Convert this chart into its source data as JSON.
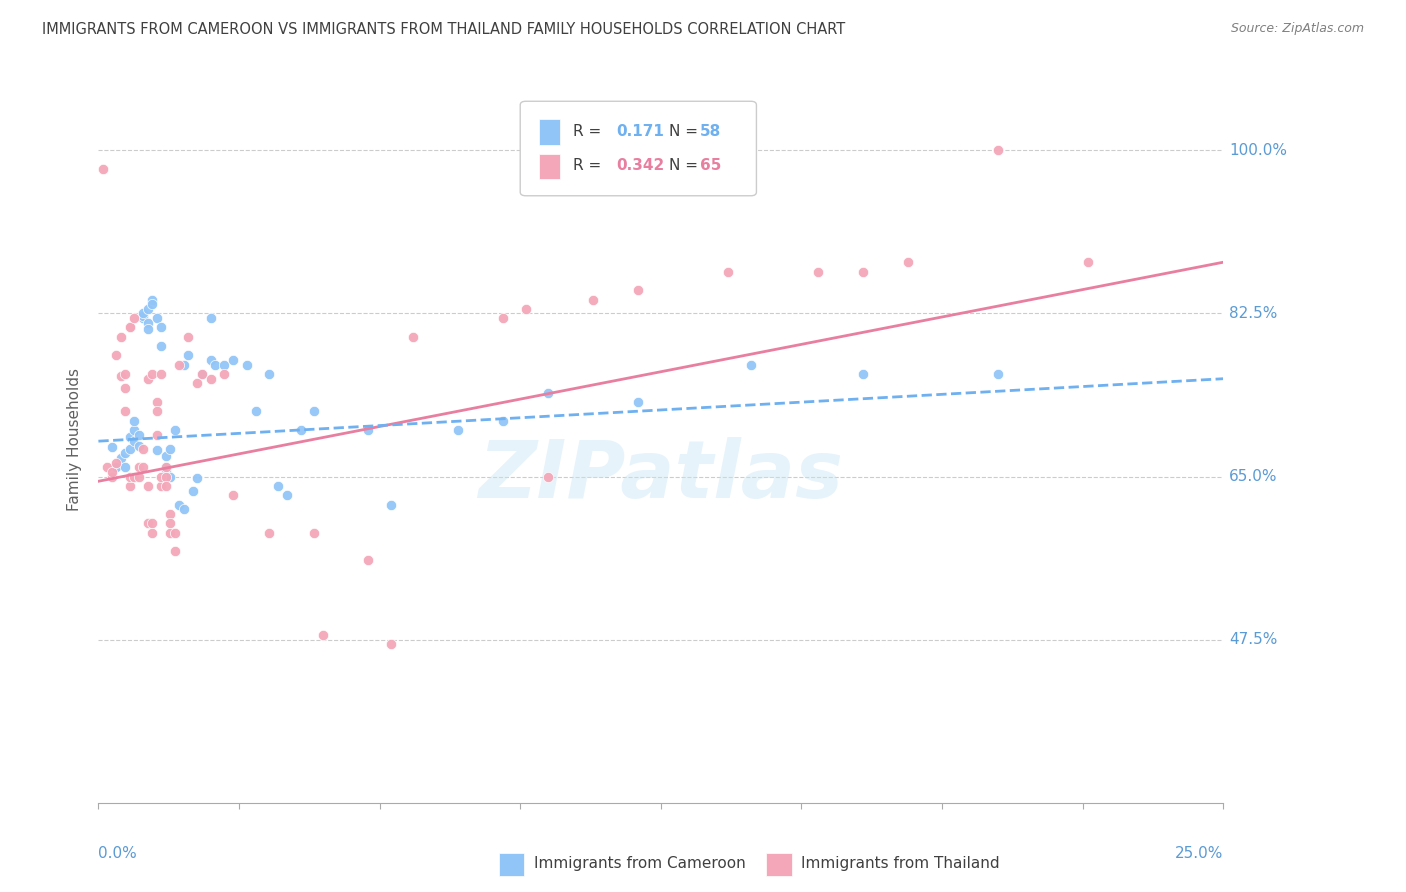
{
  "title": "IMMIGRANTS FROM CAMEROON VS IMMIGRANTS FROM THAILAND FAMILY HOUSEHOLDS CORRELATION CHART",
  "source": "Source: ZipAtlas.com",
  "ylabel": "Family Households",
  "legend_blue": {
    "R": "0.171",
    "N": "58"
  },
  "legend_pink": {
    "R": "0.342",
    "N": "65"
  },
  "watermark": "ZIPatlas",
  "blue_color": "#92C5F7",
  "pink_color": "#F4A7B9",
  "line_blue_color": "#6EB0F0",
  "line_pink_color": "#E87FA0",
  "axis_label_color": "#5B9BD5",
  "title_color": "#404040",
  "blue_scatter": [
    [
      0.003,
      0.682
    ],
    [
      0.004,
      0.66
    ],
    [
      0.005,
      0.67
    ],
    [
      0.006,
      0.675
    ],
    [
      0.006,
      0.66
    ],
    [
      0.007,
      0.692
    ],
    [
      0.007,
      0.68
    ],
    [
      0.008,
      0.7
    ],
    [
      0.008,
      0.688
    ],
    [
      0.008,
      0.71
    ],
    [
      0.009,
      0.695
    ],
    [
      0.009,
      0.683
    ],
    [
      0.01,
      0.82
    ],
    [
      0.01,
      0.822
    ],
    [
      0.01,
      0.825
    ],
    [
      0.011,
      0.83
    ],
    [
      0.011,
      0.815
    ],
    [
      0.011,
      0.808
    ],
    [
      0.012,
      0.84
    ],
    [
      0.012,
      0.835
    ],
    [
      0.013,
      0.82
    ],
    [
      0.013,
      0.678
    ],
    [
      0.014,
      0.81
    ],
    [
      0.014,
      0.79
    ],
    [
      0.015,
      0.672
    ],
    [
      0.015,
      0.66
    ],
    [
      0.015,
      0.655
    ],
    [
      0.016,
      0.65
    ],
    [
      0.016,
      0.68
    ],
    [
      0.017,
      0.7
    ],
    [
      0.018,
      0.62
    ],
    [
      0.019,
      0.615
    ],
    [
      0.019,
      0.77
    ],
    [
      0.02,
      0.78
    ],
    [
      0.021,
      0.635
    ],
    [
      0.022,
      0.648
    ],
    [
      0.023,
      0.76
    ],
    [
      0.025,
      0.82
    ],
    [
      0.025,
      0.775
    ],
    [
      0.026,
      0.77
    ],
    [
      0.028,
      0.77
    ],
    [
      0.03,
      0.775
    ],
    [
      0.033,
      0.77
    ],
    [
      0.035,
      0.72
    ],
    [
      0.038,
      0.76
    ],
    [
      0.04,
      0.64
    ],
    [
      0.042,
      0.63
    ],
    [
      0.045,
      0.7
    ],
    [
      0.048,
      0.72
    ],
    [
      0.06,
      0.7
    ],
    [
      0.065,
      0.62
    ],
    [
      0.08,
      0.7
    ],
    [
      0.09,
      0.71
    ],
    [
      0.1,
      0.74
    ],
    [
      0.12,
      0.73
    ],
    [
      0.145,
      0.77
    ],
    [
      0.17,
      0.76
    ],
    [
      0.2,
      0.76
    ]
  ],
  "pink_scatter": [
    [
      0.001,
      0.98
    ],
    [
      0.002,
      0.66
    ],
    [
      0.003,
      0.65
    ],
    [
      0.003,
      0.655
    ],
    [
      0.004,
      0.665
    ],
    [
      0.004,
      0.78
    ],
    [
      0.005,
      0.758
    ],
    [
      0.005,
      0.8
    ],
    [
      0.006,
      0.72
    ],
    [
      0.006,
      0.745
    ],
    [
      0.006,
      0.76
    ],
    [
      0.007,
      0.81
    ],
    [
      0.007,
      0.81
    ],
    [
      0.007,
      0.64
    ],
    [
      0.007,
      0.65
    ],
    [
      0.008,
      0.65
    ],
    [
      0.008,
      0.82
    ],
    [
      0.009,
      0.66
    ],
    [
      0.009,
      0.65
    ],
    [
      0.01,
      0.68
    ],
    [
      0.01,
      0.66
    ],
    [
      0.011,
      0.755
    ],
    [
      0.011,
      0.64
    ],
    [
      0.011,
      0.6
    ],
    [
      0.012,
      0.59
    ],
    [
      0.012,
      0.6
    ],
    [
      0.012,
      0.76
    ],
    [
      0.013,
      0.73
    ],
    [
      0.013,
      0.72
    ],
    [
      0.013,
      0.695
    ],
    [
      0.014,
      0.76
    ],
    [
      0.014,
      0.64
    ],
    [
      0.014,
      0.65
    ],
    [
      0.015,
      0.66
    ],
    [
      0.015,
      0.65
    ],
    [
      0.015,
      0.64
    ],
    [
      0.016,
      0.61
    ],
    [
      0.016,
      0.59
    ],
    [
      0.016,
      0.6
    ],
    [
      0.017,
      0.59
    ],
    [
      0.017,
      0.57
    ],
    [
      0.018,
      0.77
    ],
    [
      0.02,
      0.8
    ],
    [
      0.022,
      0.75
    ],
    [
      0.023,
      0.76
    ],
    [
      0.025,
      0.755
    ],
    [
      0.028,
      0.76
    ],
    [
      0.03,
      0.63
    ],
    [
      0.038,
      0.59
    ],
    [
      0.048,
      0.59
    ],
    [
      0.05,
      0.48
    ],
    [
      0.06,
      0.56
    ],
    [
      0.065,
      0.47
    ],
    [
      0.07,
      0.8
    ],
    [
      0.09,
      0.82
    ],
    [
      0.095,
      0.83
    ],
    [
      0.1,
      0.65
    ],
    [
      0.11,
      0.84
    ],
    [
      0.12,
      0.85
    ],
    [
      0.14,
      0.87
    ],
    [
      0.16,
      0.87
    ],
    [
      0.17,
      0.87
    ],
    [
      0.18,
      0.88
    ],
    [
      0.2,
      1.0
    ],
    [
      0.22,
      0.88
    ]
  ],
  "blue_line_x": [
    0.0,
    0.25
  ],
  "blue_line_y": [
    0.688,
    0.755
  ],
  "pink_line_x": [
    0.0,
    0.25
  ],
  "pink_line_y": [
    0.645,
    0.88
  ],
  "xmin": 0.0,
  "xmax": 0.25,
  "ymin": 0.3,
  "ymax": 1.08,
  "yticks": [
    0.475,
    0.65,
    0.825,
    1.0
  ],
  "ytick_labels": [
    "47.5%",
    "65.0%",
    "82.5%",
    "100.0%"
  ]
}
